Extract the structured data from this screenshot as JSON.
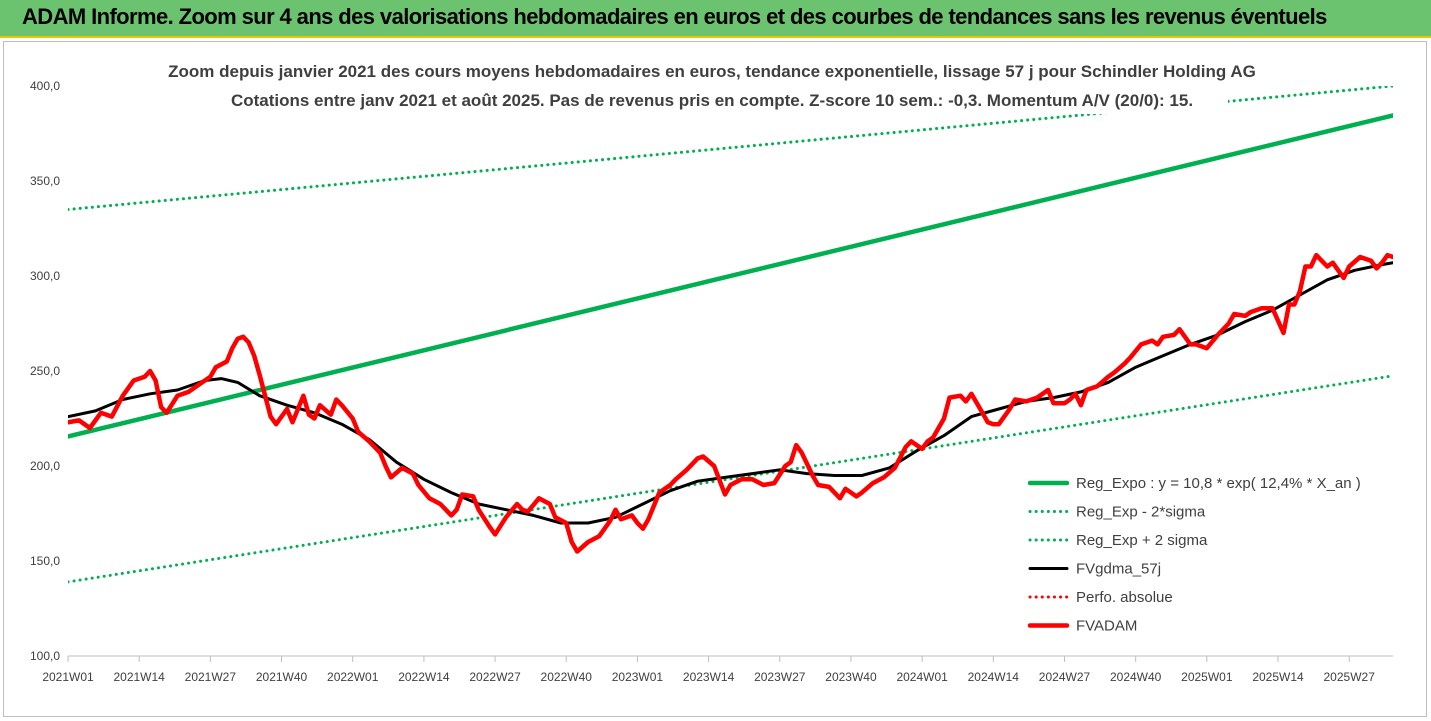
{
  "banner": {
    "title": "ADAM Informe. Zoom sur 4 ans des valorisations hebdomadaires en euros et des courbes de tendances sans les revenus éventuels"
  },
  "colors": {
    "banner_bg": "#6cc36f",
    "banner_border": "#f2c200",
    "reg_expo": "#00b050",
    "fvgdma": "#000000",
    "perfo": "#ff0000",
    "fvadam": "#ff0000"
  },
  "chart_data": {
    "type": "line",
    "title_line1": "Zoom depuis janvier 2021 des cours moyens hebdomadaires en euros, tendance exponentielle, lissage 57 j pour Schindler Holding AG",
    "title_line2": "Cotations entre janv 2021 et août 2025.  Pas de revenus pris en compte. Z-score 10 sem.: -0,3. Momentum A/V (20/0): 15.",
    "ylim": [
      100,
      400
    ],
    "y_ticks": [
      "100,0",
      "150,0",
      "200,0",
      "250,0",
      "300,0",
      "350,0",
      "400,0"
    ],
    "x_range_weeks": [
      0,
      242
    ],
    "x_ticks": [
      {
        "week": 0,
        "label": "2021W01"
      },
      {
        "week": 13,
        "label": "2021W14"
      },
      {
        "week": 26,
        "label": "2021W27"
      },
      {
        "week": 39,
        "label": "2021W40"
      },
      {
        "week": 52,
        "label": "2022W01"
      },
      {
        "week": 65,
        "label": "2022W14"
      },
      {
        "week": 78,
        "label": "2022W27"
      },
      {
        "week": 91,
        "label": "2022W40"
      },
      {
        "week": 104,
        "label": "2023W01"
      },
      {
        "week": 117,
        "label": "2023W14"
      },
      {
        "week": 130,
        "label": "2023W27"
      },
      {
        "week": 143,
        "label": "2023W40"
      },
      {
        "week": 156,
        "label": "2024W01"
      },
      {
        "week": 169,
        "label": "2024W14"
      },
      {
        "week": 182,
        "label": "2024W27"
      },
      {
        "week": 195,
        "label": "2024W40"
      },
      {
        "week": 208,
        "label": "2025W01"
      },
      {
        "week": 221,
        "label": "2025W14"
      },
      {
        "week": 234,
        "label": "2025W27"
      }
    ],
    "series": [
      {
        "name": "Reg_Expo : y = 10,8 * exp( 12,4% *  X_an )",
        "style": "solid-thick",
        "color": "#00b050",
        "points": [
          [
            0,
            215.5
          ],
          [
            242,
            384.5
          ]
        ]
      },
      {
        "name": "Reg_Exp - 2*sigma",
        "style": "dotted",
        "color": "#00b050",
        "points": [
          [
            0,
            139
          ],
          [
            242,
            247.5
          ]
        ]
      },
      {
        "name": "Reg_Exp + 2 sigma",
        "style": "dotted",
        "color": "#00b050",
        "points": [
          [
            0,
            335
          ],
          [
            242,
            400
          ]
        ]
      },
      {
        "name": "FVgdma_57j",
        "style": "solid",
        "color": "#000000",
        "points": [
          [
            0,
            226
          ],
          [
            5,
            229
          ],
          [
            10,
            235
          ],
          [
            15,
            238
          ],
          [
            20,
            240
          ],
          [
            25,
            245
          ],
          [
            28,
            246
          ],
          [
            31,
            244
          ],
          [
            35,
            237
          ],
          [
            40,
            232
          ],
          [
            45,
            228
          ],
          [
            50,
            222
          ],
          [
            55,
            214
          ],
          [
            60,
            202
          ],
          [
            65,
            193
          ],
          [
            70,
            186
          ],
          [
            75,
            180
          ],
          [
            80,
            177
          ],
          [
            85,
            174
          ],
          [
            90,
            170
          ],
          [
            95,
            170
          ],
          [
            100,
            173
          ],
          [
            105,
            180
          ],
          [
            110,
            187
          ],
          [
            115,
            192
          ],
          [
            120,
            194
          ],
          [
            125,
            196
          ],
          [
            130,
            198
          ],
          [
            135,
            196
          ],
          [
            140,
            195
          ],
          [
            145,
            195
          ],
          [
            150,
            199
          ],
          [
            155,
            208
          ],
          [
            160,
            216
          ],
          [
            165,
            226
          ],
          [
            170,
            230
          ],
          [
            175,
            234
          ],
          [
            180,
            236
          ],
          [
            185,
            239
          ],
          [
            190,
            244
          ],
          [
            195,
            252
          ],
          [
            200,
            258
          ],
          [
            205,
            264
          ],
          [
            210,
            269
          ],
          [
            215,
            276
          ],
          [
            220,
            282
          ],
          [
            225,
            290
          ],
          [
            230,
            298
          ],
          [
            235,
            303
          ],
          [
            240,
            306
          ],
          [
            242,
            307
          ]
        ]
      },
      {
        "name": "Perfo. absolue",
        "style": "dotted",
        "color": "#ff0000",
        "points": []
      },
      {
        "name": "FVADAM",
        "style": "solid-thick",
        "color": "#ff0000",
        "points": [
          [
            0,
            223
          ],
          [
            2,
            224
          ],
          [
            4,
            220
          ],
          [
            6,
            228
          ],
          [
            8,
            226
          ],
          [
            10,
            237
          ],
          [
            12,
            245
          ],
          [
            14,
            247
          ],
          [
            15,
            250
          ],
          [
            16,
            245
          ],
          [
            17,
            231
          ],
          [
            18,
            228
          ],
          [
            20,
            237
          ],
          [
            22,
            239
          ],
          [
            24,
            243
          ],
          [
            26,
            247
          ],
          [
            27,
            252
          ],
          [
            29,
            255
          ],
          [
            30,
            262
          ],
          [
            31,
            267
          ],
          [
            32,
            268
          ],
          [
            33,
            265
          ],
          [
            34,
            258
          ],
          [
            35,
            248
          ],
          [
            36,
            237
          ],
          [
            37,
            226
          ],
          [
            38,
            222
          ],
          [
            40,
            230
          ],
          [
            41,
            223
          ],
          [
            43,
            237
          ],
          [
            44,
            227
          ],
          [
            45,
            225
          ],
          [
            46,
            232
          ],
          [
            48,
            227
          ],
          [
            49,
            235
          ],
          [
            50,
            232
          ],
          [
            52,
            225
          ],
          [
            53,
            218
          ],
          [
            55,
            213
          ],
          [
            56,
            210
          ],
          [
            57,
            207
          ],
          [
            58,
            200
          ],
          [
            59,
            194
          ],
          [
            61,
            199
          ],
          [
            63,
            196
          ],
          [
            64,
            190
          ],
          [
            66,
            183
          ],
          [
            68,
            180
          ],
          [
            70,
            174
          ],
          [
            71,
            177
          ],
          [
            72,
            185
          ],
          [
            74,
            184
          ],
          [
            75,
            177
          ],
          [
            77,
            168
          ],
          [
            78,
            164
          ],
          [
            80,
            173
          ],
          [
            82,
            180
          ],
          [
            83,
            177
          ],
          [
            84,
            176
          ],
          [
            86,
            183
          ],
          [
            88,
            180
          ],
          [
            89,
            173
          ],
          [
            91,
            170
          ],
          [
            92,
            160
          ],
          [
            93,
            155
          ],
          [
            95,
            160
          ],
          [
            97,
            163
          ],
          [
            99,
            171
          ],
          [
            100,
            177
          ],
          [
            101,
            172
          ],
          [
            103,
            174
          ],
          [
            104,
            170
          ],
          [
            105,
            167
          ],
          [
            106,
            172
          ],
          [
            108,
            186
          ],
          [
            110,
            190
          ],
          [
            111,
            193
          ],
          [
            113,
            198
          ],
          [
            115,
            204
          ],
          [
            116,
            205
          ],
          [
            118,
            200
          ],
          [
            120,
            185
          ],
          [
            121,
            190
          ],
          [
            123,
            193
          ],
          [
            125,
            193
          ],
          [
            127,
            190
          ],
          [
            129,
            191
          ],
          [
            131,
            200
          ],
          [
            132,
            202
          ],
          [
            133,
            211
          ],
          [
            134,
            207
          ],
          [
            136,
            195
          ],
          [
            137,
            190
          ],
          [
            139,
            189
          ],
          [
            141,
            183
          ],
          [
            142,
            188
          ],
          [
            144,
            184
          ],
          [
            145,
            186
          ],
          [
            147,
            191
          ],
          [
            149,
            194
          ],
          [
            151,
            199
          ],
          [
            153,
            210
          ],
          [
            154,
            213
          ],
          [
            156,
            209
          ],
          [
            157,
            213
          ],
          [
            158,
            215
          ],
          [
            160,
            225
          ],
          [
            161,
            236
          ],
          [
            163,
            237
          ],
          [
            164,
            234
          ],
          [
            165,
            238
          ],
          [
            167,
            228
          ],
          [
            168,
            223
          ],
          [
            169,
            222
          ],
          [
            170,
            222
          ],
          [
            172,
            230
          ],
          [
            173,
            235
          ],
          [
            175,
            234
          ],
          [
            177,
            236
          ],
          [
            179,
            240
          ],
          [
            180,
            233
          ],
          [
            182,
            233
          ],
          [
            183,
            235
          ],
          [
            184,
            238
          ],
          [
            185,
            232
          ],
          [
            186,
            240
          ],
          [
            188,
            242
          ],
          [
            190,
            247
          ],
          [
            191,
            249
          ],
          [
            193,
            254
          ],
          [
            194,
            257
          ],
          [
            196,
            264
          ],
          [
            198,
            266
          ],
          [
            199,
            264
          ],
          [
            200,
            268
          ],
          [
            202,
            269
          ],
          [
            203,
            272
          ],
          [
            205,
            264
          ],
          [
            206,
            264
          ],
          [
            208,
            262
          ],
          [
            210,
            269
          ],
          [
            212,
            275
          ],
          [
            213,
            280
          ],
          [
            215,
            279
          ],
          [
            216,
            281
          ],
          [
            218,
            283
          ],
          [
            220,
            283
          ],
          [
            222,
            270
          ],
          [
            223,
            285
          ],
          [
            224,
            285
          ],
          [
            225,
            292
          ],
          [
            226,
            305
          ],
          [
            227,
            305
          ],
          [
            228,
            311
          ],
          [
            229,
            308
          ],
          [
            230,
            305
          ],
          [
            231,
            307
          ],
          [
            232,
            303
          ],
          [
            233,
            299
          ],
          [
            234,
            305
          ],
          [
            236,
            310
          ],
          [
            238,
            308
          ],
          [
            239,
            304
          ],
          [
            240,
            307
          ],
          [
            241,
            311
          ],
          [
            242,
            310
          ]
        ]
      }
    ],
    "legend_position": "bottom-right"
  }
}
